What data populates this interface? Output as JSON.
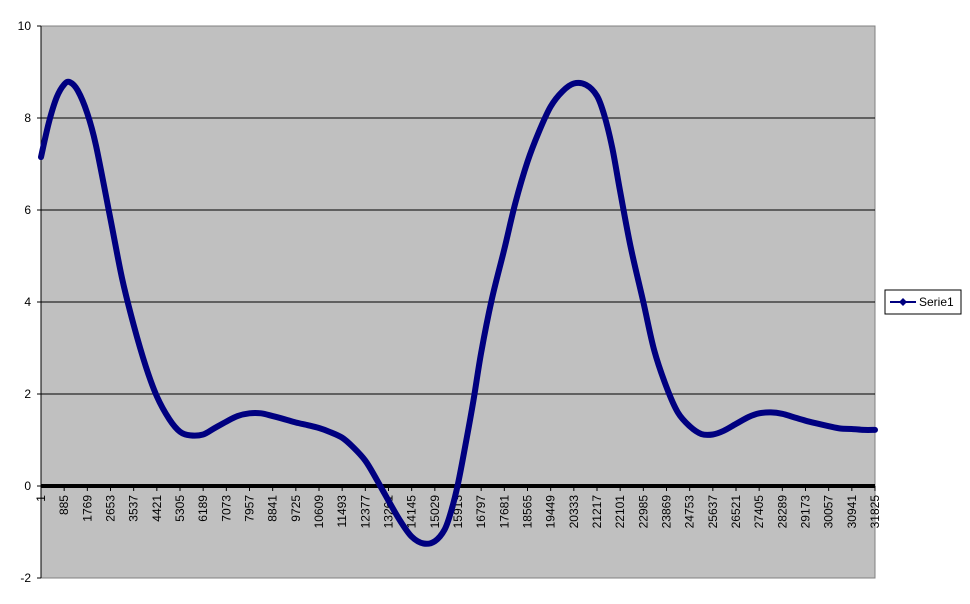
{
  "chart_data": {
    "type": "line",
    "title": "",
    "xlabel": "",
    "ylabel": "",
    "ylim": [
      -2,
      10
    ],
    "yticks": [
      -2,
      0,
      2,
      4,
      6,
      8,
      10
    ],
    "grid": "horizontal",
    "legend": {
      "placement": "right"
    },
    "categories": [
      "1",
      "885",
      "1769",
      "2653",
      "3537",
      "4421",
      "5305",
      "6189",
      "7073",
      "7957",
      "8841",
      "9725",
      "10609",
      "11493",
      "12377",
      "13261",
      "14145",
      "15029",
      "15913",
      "16797",
      "17681",
      "18565",
      "19449",
      "20333",
      "21217",
      "22101",
      "22985",
      "23869",
      "24753",
      "25637",
      "26521",
      "27405",
      "28289",
      "29173",
      "30057",
      "30941",
      "31825"
    ],
    "series": [
      {
        "name": "Serie1",
        "color": "#000080",
        "x": [
          1,
          300,
          600,
          885,
          1100,
          1400,
          1769,
          2100,
          2653,
          3100,
          3537,
          4000,
          4421,
          4900,
          5305,
          5700,
          6189,
          6600,
          7073,
          7500,
          7957,
          8400,
          8841,
          9300,
          9725,
          10200,
          10609,
          11000,
          11493,
          11900,
          12377,
          12800,
          13261,
          13700,
          14145,
          14600,
          15029,
          15400,
          15650,
          15913,
          16200,
          16500,
          16797,
          17200,
          17681,
          18100,
          18565,
          19000,
          19449,
          19900,
          20333,
          20800,
          21217,
          21500,
          21800,
          22101,
          22500,
          22985,
          23400,
          23869,
          24300,
          24753,
          25200,
          25637,
          26050,
          26521,
          27000,
          27405,
          27850,
          28289,
          28700,
          29173,
          29600,
          30057,
          30500,
          30941,
          31400,
          31825
        ],
        "y": [
          7.15,
          7.9,
          8.45,
          8.73,
          8.78,
          8.6,
          8.1,
          7.4,
          5.8,
          4.5,
          3.5,
          2.6,
          1.95,
          1.45,
          1.18,
          1.1,
          1.12,
          1.25,
          1.4,
          1.52,
          1.58,
          1.58,
          1.52,
          1.45,
          1.38,
          1.32,
          1.26,
          1.18,
          1.05,
          0.85,
          0.55,
          0.15,
          -0.32,
          -0.75,
          -1.1,
          -1.25,
          -1.2,
          -0.95,
          -0.55,
          0.05,
          0.9,
          1.85,
          2.9,
          4.05,
          5.15,
          6.15,
          7.05,
          7.7,
          8.25,
          8.58,
          8.75,
          8.72,
          8.48,
          8.05,
          7.35,
          6.4,
          5.2,
          4.0,
          2.95,
          2.15,
          1.6,
          1.3,
          1.13,
          1.12,
          1.2,
          1.35,
          1.5,
          1.58,
          1.6,
          1.57,
          1.5,
          1.42,
          1.36,
          1.3,
          1.25,
          1.24,
          1.22,
          1.22
        ]
      }
    ]
  }
}
